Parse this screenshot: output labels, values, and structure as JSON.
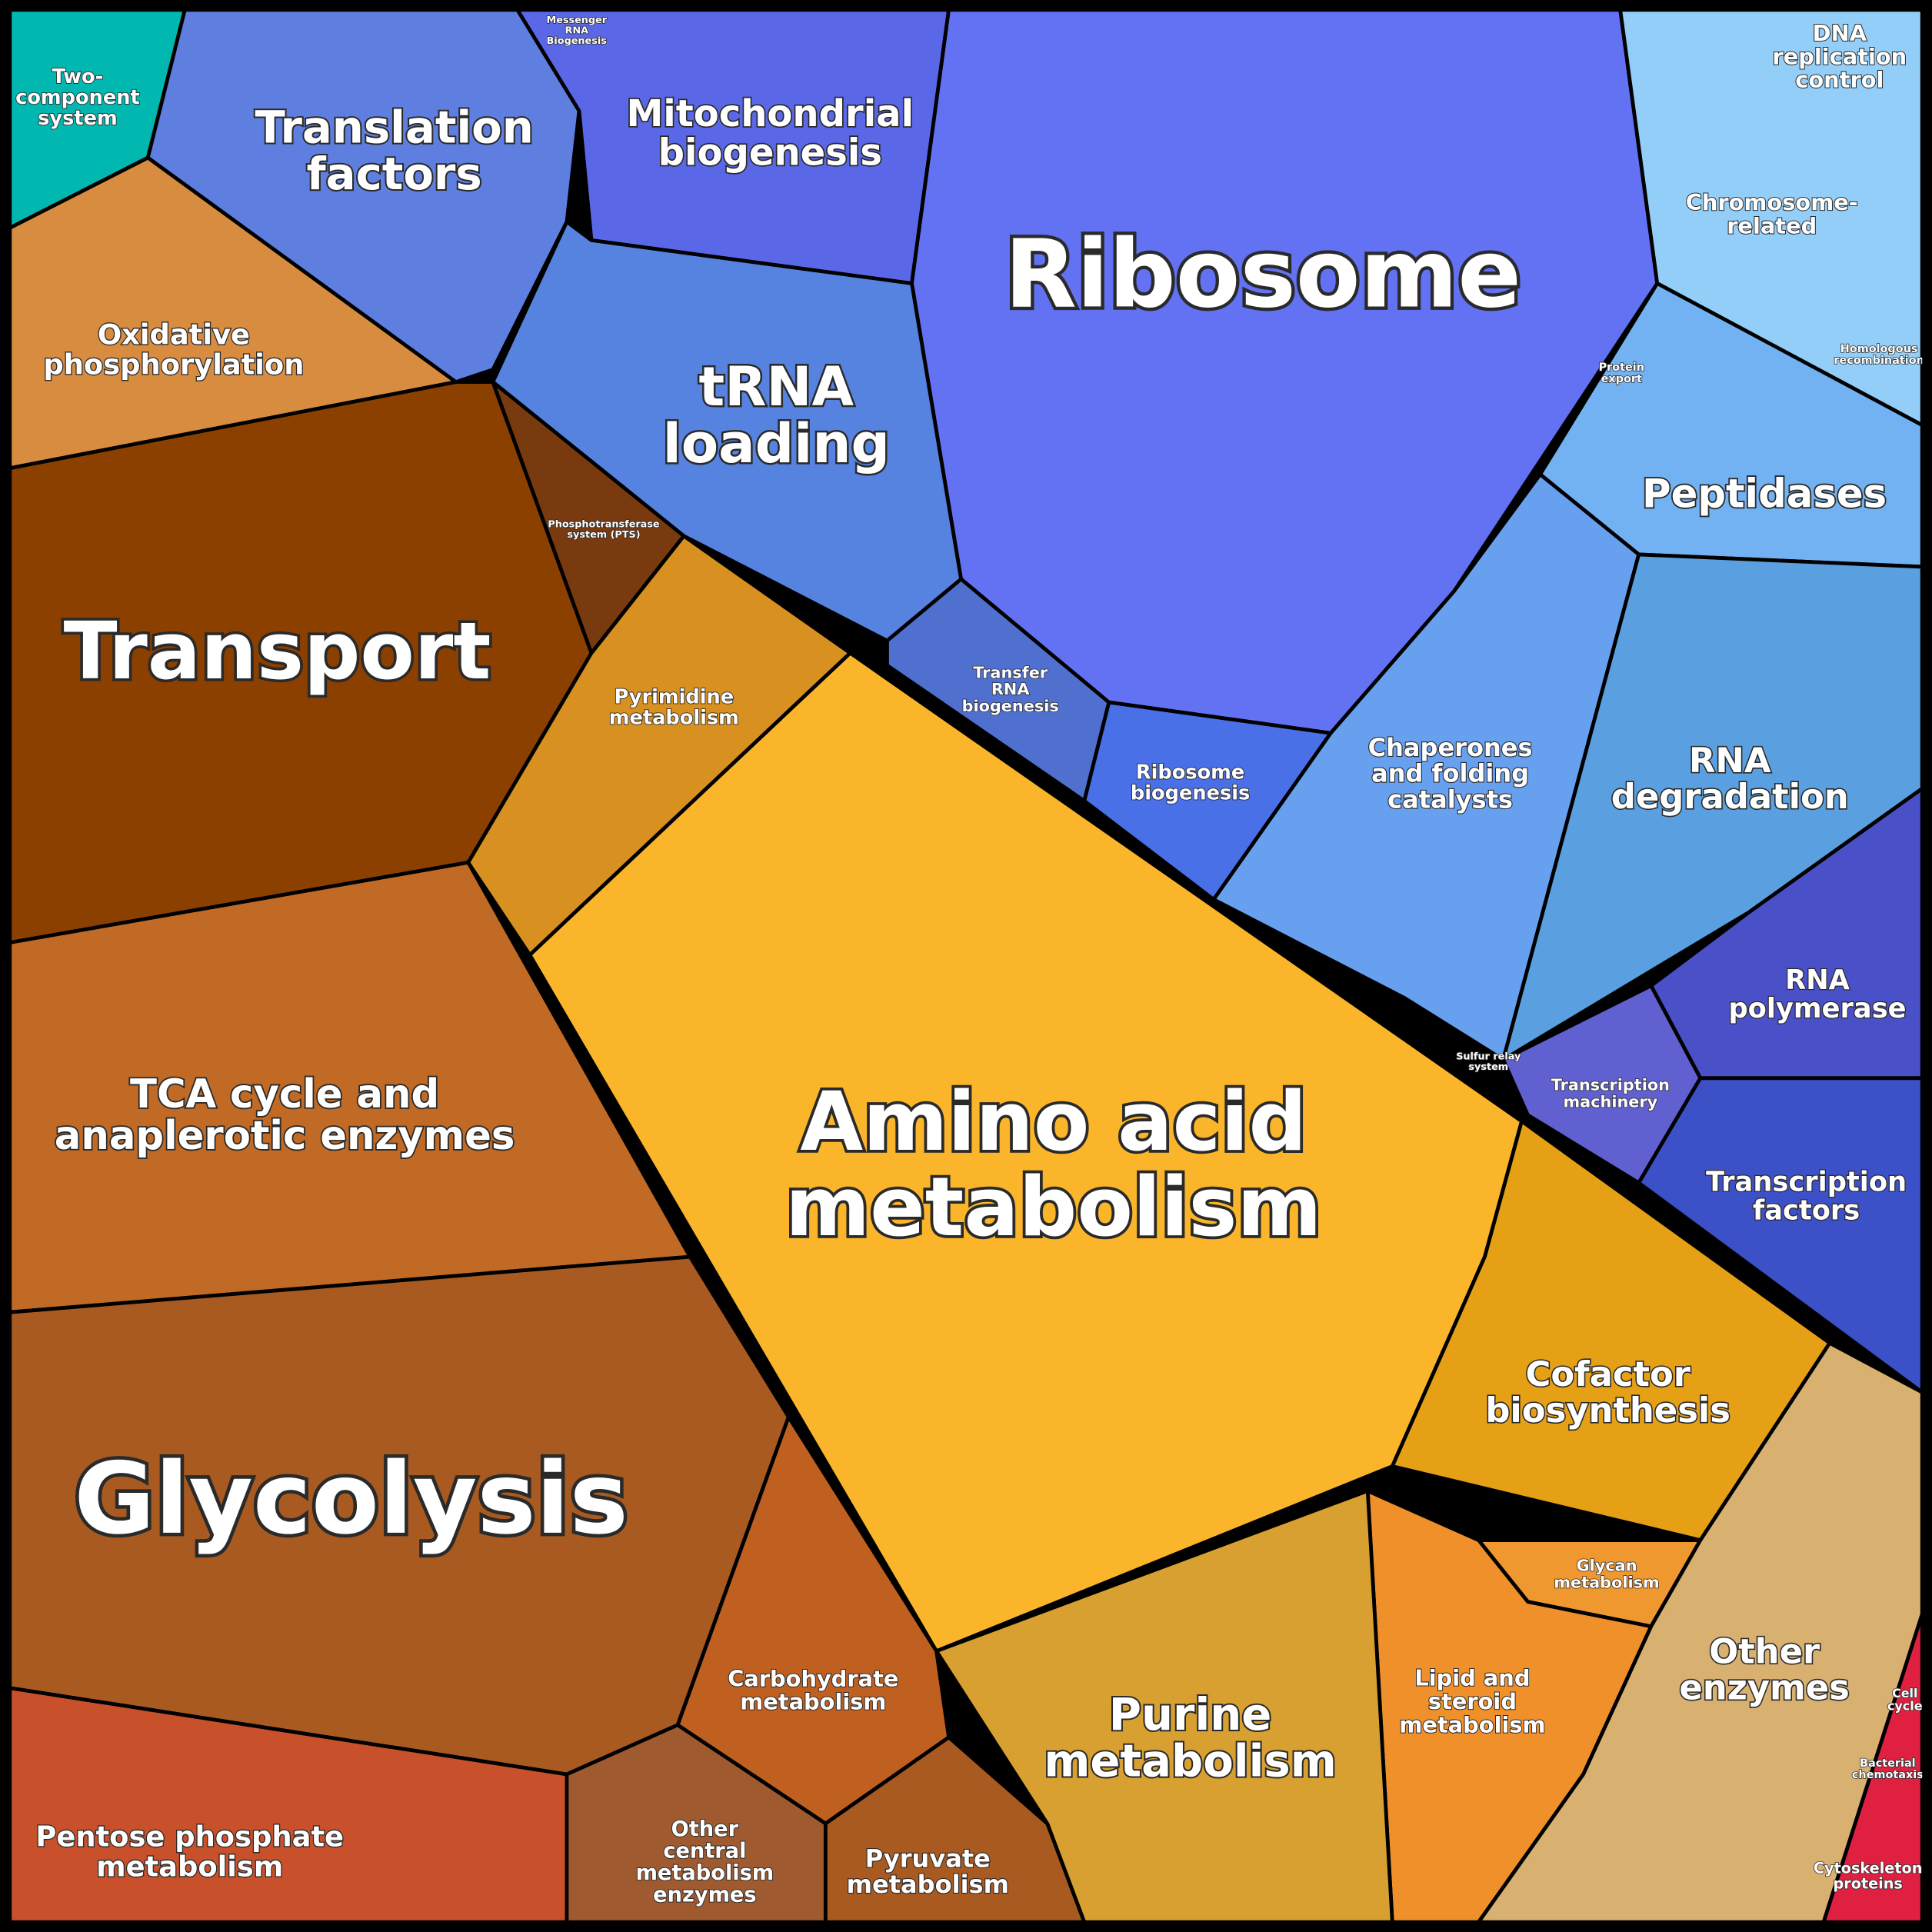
{
  "nodes": [
    {
      "lines": [
        "Two-",
        "component",
        "system"
      ]
    },
    {
      "lines": [
        "Translation",
        "factors"
      ]
    },
    {
      "lines": [
        "Messenger",
        "RNA",
        "Biogenesis"
      ]
    },
    {
      "lines": [
        "Mitochondrial",
        "biogenesis"
      ]
    },
    {
      "lines": [
        "Ribosome"
      ]
    },
    {
      "lines": [
        "tRNA",
        "loading"
      ]
    },
    {
      "lines": [
        "Transfer",
        "RNA",
        "biogenesis"
      ]
    },
    {
      "lines": [
        "Ribosome",
        "biogenesis"
      ]
    },
    {
      "lines": [
        "DNA",
        "replication",
        "control"
      ]
    },
    {
      "lines": [
        "Chromosome-",
        "related"
      ]
    },
    {
      "lines": [
        "Homologous",
        "recombination"
      ]
    },
    {
      "lines": [
        "Protein",
        "export"
      ]
    },
    {
      "lines": [
        "Peptidases"
      ]
    },
    {
      "lines": [
        "Chaperones",
        "and folding",
        "catalysts"
      ]
    },
    {
      "lines": [
        "RNA",
        "degradation"
      ]
    },
    {
      "lines": [
        "RNA",
        "polymerase"
      ]
    },
    {
      "lines": [
        "Transcription",
        "machinery"
      ]
    },
    {
      "lines": [
        "Transcription",
        "factors"
      ]
    },
    {
      "lines": [
        "Oxidative",
        "phosphorylation"
      ]
    },
    {
      "lines": [
        "Transport"
      ]
    },
    {
      "lines": [
        "Phosphotransferase",
        "system (PTS)"
      ]
    },
    {
      "lines": [
        "Pyrimidine",
        "metabolism"
      ]
    },
    {
      "lines": [
        "Amino acid",
        "metabolism"
      ]
    },
    {
      "lines": [
        "Cofactor",
        "biosynthesis"
      ]
    },
    {
      "lines": [
        "Glycan",
        "metabolism"
      ]
    },
    {
      "lines": [
        "Lipid and",
        "steroid",
        "metabolism"
      ]
    },
    {
      "lines": [
        "Purine",
        "metabolism"
      ]
    },
    {
      "lines": [
        "Other",
        "enzymes"
      ]
    },
    {
      "lines": [
        "Cell",
        "cycle"
      ]
    },
    {
      "lines": [
        "Bacterial",
        "chemotaxis"
      ]
    },
    {
      "lines": [
        "Cytoskeleton",
        "proteins"
      ]
    },
    {
      "lines": [
        "TCA cycle and",
        "anaplerotic enzymes"
      ]
    },
    {
      "lines": [
        "Glycolysis"
      ]
    },
    {
      "lines": [
        "Pentose phosphate",
        "metabolism"
      ]
    },
    {
      "lines": [
        "Carbohydrate",
        "metabolism"
      ]
    },
    {
      "lines": [
        "Other",
        "central",
        "metabolism",
        "enzymes"
      ]
    },
    {
      "lines": [
        "Pyruvate",
        "metabolism"
      ]
    },
    {
      "lines": [
        "Sulfur relay",
        "system"
      ]
    }
  ]
}
